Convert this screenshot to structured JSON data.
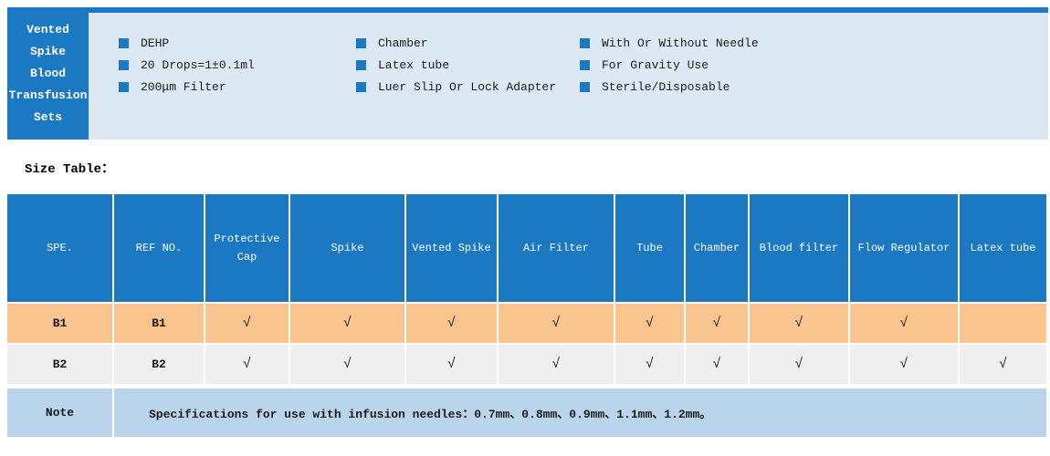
{
  "product": {
    "title_lines": [
      "Vented",
      "Spike",
      "Blood",
      "Transfusion",
      "Sets"
    ],
    "features": {
      "col1": [
        "DEHP",
        "20 Drops=1±0.1ml",
        "200μm Filter"
      ],
      "col2": [
        "Chamber",
        "Latex tube",
        "Luer Slip Or Lock Adapter"
      ],
      "col3": [
        "With Or Without Needle",
        "For Gravity Use",
        "Sterile/Disposable"
      ]
    }
  },
  "section": {
    "size_table_label": "Size Table："
  },
  "size_table": {
    "headers": [
      "SPE.",
      "REF NO.",
      "Protective Cap",
      "Spike",
      "Vented Spike",
      "Air Filter",
      "Tube",
      "Chamber",
      "Blood filter",
      "Flow Regulator",
      "Latex tube"
    ],
    "rows": [
      {
        "spe": "B1",
        "ref": "B1",
        "checks": [
          "√",
          "√",
          "√",
          "√",
          "√",
          "√",
          "√",
          "√",
          ""
        ]
      },
      {
        "spe": "B2",
        "ref": "B2",
        "checks": [
          "√",
          "√",
          "√",
          "√",
          "√",
          "√",
          "√",
          "√",
          "√"
        ]
      }
    ],
    "note_label": "Note",
    "note_text": "Specifications for use with infusion needles：0.7mm、0.8mm、0.9mm、1.1mm、1.2mm。"
  },
  "colors": {
    "primary_blue": "#1b79c4",
    "panel_light_blue": "#dce9f4",
    "row_b1_peach": "#f9c48e",
    "row_b2_gray": "#efeff0",
    "note_light_blue": "#b9d4eb"
  }
}
